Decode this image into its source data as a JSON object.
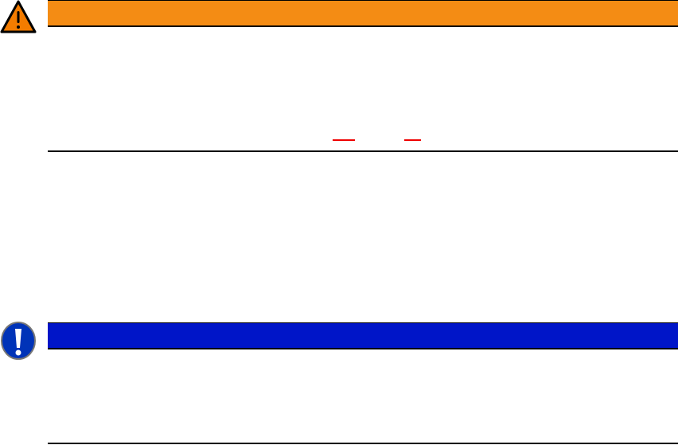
{
  "warning": {
    "icon": "warning-triangle-icon",
    "color": "#f48c14",
    "heading": ""
  },
  "notice": {
    "icon": "exclamation-circle-icon",
    "color": "#0015c8",
    "heading": ""
  },
  "colors": {
    "rule": "#000000",
    "underline": "#e00000"
  }
}
